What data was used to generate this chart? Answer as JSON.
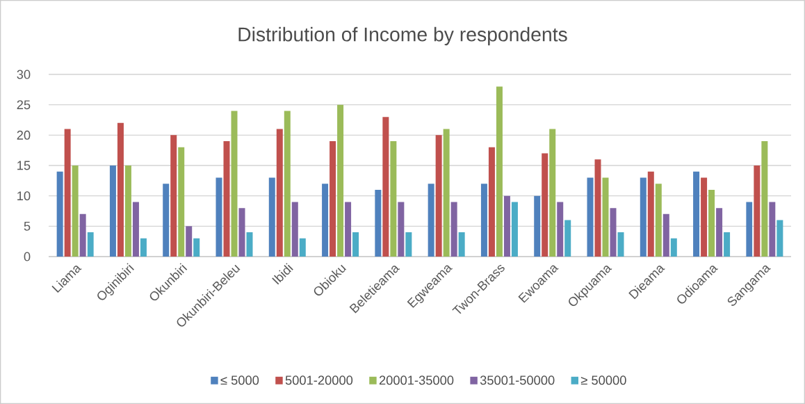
{
  "chart_data": {
    "type": "bar",
    "title": "Distribution of Income by respondents",
    "categories": [
      "Liama",
      "Oginibiri",
      "Okunbiri",
      "Okunbiri-Beleu",
      "Ibidi",
      "Obioku",
      "Beletieama",
      "Egweama",
      "Twon-Brass",
      "Ewoama",
      "Okpuama",
      "Dieama",
      "Odioama",
      "Sangama"
    ],
    "series": [
      {
        "name": "≤ 5000",
        "color": "#4f81bd",
        "values": [
          14,
          15,
          12,
          13,
          13,
          12,
          11,
          12,
          12,
          10,
          13,
          13,
          14,
          9
        ]
      },
      {
        "name": "5001-20000",
        "color": "#c0504d",
        "values": [
          21,
          22,
          20,
          19,
          21,
          19,
          23,
          20,
          18,
          17,
          16,
          14,
          13,
          15
        ]
      },
      {
        "name": "20001-35000",
        "color": "#9bbb59",
        "values": [
          15,
          15,
          18,
          24,
          24,
          25,
          19,
          21,
          28,
          21,
          13,
          12,
          11,
          19
        ]
      },
      {
        "name": "35001-50000",
        "color": "#8064a2",
        "values": [
          7,
          9,
          5,
          8,
          9,
          9,
          9,
          9,
          10,
          9,
          8,
          7,
          8,
          9
        ]
      },
      {
        "name": "≥ 50000",
        "color": "#4bacc6",
        "values": [
          4,
          3,
          3,
          4,
          3,
          4,
          4,
          4,
          9,
          6,
          4,
          3,
          4,
          6
        ]
      }
    ],
    "ylim": [
      0,
      30
    ],
    "yticks": [
      0,
      5,
      10,
      15,
      20,
      25,
      30
    ],
    "grid": "y",
    "legend": "bottom"
  }
}
